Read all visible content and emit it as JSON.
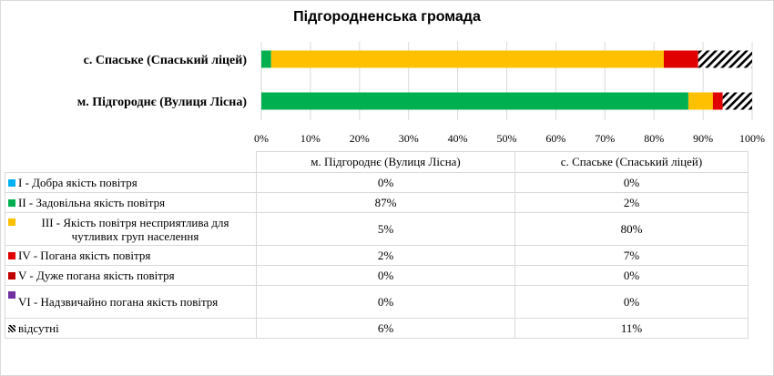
{
  "chart_data": {
    "type": "bar",
    "orientation": "horizontal",
    "stacked": "percent",
    "title": "Підгородненська громада",
    "categories": [
      "м. Підгороднє (Вулиця Лісна)",
      "с. Спаське (Спаський ліцей)"
    ],
    "x_ticks": [
      "0%",
      "10%",
      "20%",
      "30%",
      "40%",
      "50%",
      "60%",
      "70%",
      "80%",
      "90%",
      "100%"
    ],
    "xlim": [
      0,
      100
    ],
    "grid": "vertical",
    "legend": "table below chart",
    "series": [
      {
        "name": "I - Добра якість  повітря",
        "color": "#00b0f0",
        "pattern": "solid",
        "values": [
          0,
          0
        ],
        "labels": [
          "0%",
          "0%"
        ]
      },
      {
        "name": "II - Задовільна якість  повітря",
        "color": "#00b050",
        "pattern": "solid",
        "values": [
          87,
          2
        ],
        "labels": [
          "87%",
          "2%"
        ]
      },
      {
        "name": "III - Якість  повітря несприятлива для чутливих груп населення",
        "color": "#ffc000",
        "pattern": "solid",
        "values": [
          5,
          80
        ],
        "labels": [
          "5%",
          "80%"
        ]
      },
      {
        "name": "IV - Погана якість  повітря",
        "color": "#e00000",
        "pattern": "solid",
        "values": [
          2,
          7
        ],
        "labels": [
          "2%",
          "7%"
        ]
      },
      {
        "name": "V - Дуже погана якість  повітря",
        "color": "#c00000",
        "pattern": "solid",
        "values": [
          0,
          0
        ],
        "labels": [
          "0%",
          "0%"
        ]
      },
      {
        "name": "VI - Надзвичайно погана якість повітря",
        "color": "#7030a0",
        "pattern": "solid",
        "values": [
          0,
          0
        ],
        "labels": [
          "0%",
          "0%"
        ]
      },
      {
        "name": "відсутні",
        "color": "#000000",
        "pattern": "diagonal-hatch",
        "values": [
          6,
          11
        ],
        "labels": [
          "6%",
          "11%"
        ]
      }
    ]
  }
}
